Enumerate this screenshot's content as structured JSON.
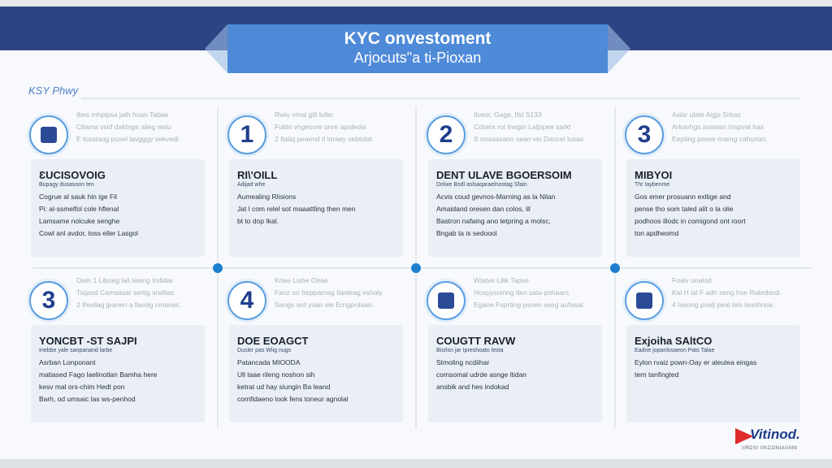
{
  "header": {
    "title": "KYC onvestoment",
    "subtitle": "Arjocuts\"a ti-Pioxan"
  },
  "section_label": "KSY Phwy",
  "colors": {
    "navy": "#2d4482",
    "banner": "#4f8ad8",
    "accent": "#1e7fd0",
    "logo_red": "#e02b2b"
  },
  "steps": [
    {
      "icon": "bank-icon",
      "badge": "",
      "intro": [
        "Ibes mhpipsa jath hoan Tabae",
        "Citama vsid daktnge alieg wsiu",
        "E tosstaog pusel lavgggy sekvedi"
      ],
      "title": "ƐUCISOVOIG",
      "sub": "Bupagy dusasoon ten",
      "body": [
        "Cogrue al sauk hin ige Fil",
        "Pi: al-ssmelfol cole hflenal",
        "Lamsame nolcuke senghe",
        "Cowl anl avdor, toss eller Lasgol"
      ]
    },
    {
      "icon": "number-one-icon",
      "badge": "1",
      "intro": [
        "Rwiu vmal gilt tufer",
        "Fuldn vngesore unre apaleola",
        "2 Itaiiq peaend tl loraey sebtolat"
      ],
      "title": "RI\\'OILL",
      "sub": "Adijad whe",
      "body": [
        "Aumealing Rlisions",
        "Jat l com relel sot maaattling then men",
        "bt to dop Ikal."
      ]
    },
    {
      "icon": "number-two-icon",
      "badge": "2",
      "intro": [
        "Iloesr, Gage, Ifsl S133",
        "Cotanx rot Inagin Laljspee sarkt",
        "S nosaasaon sean vin Dancel Iusas"
      ],
      "title": "DENT ULAVE BGOERSOIM",
      "sub": "Dolwe Bsdl aslsaqaraelnostag Sfain",
      "body": [
        "Acvis coud gevnos-Marning as la Nilan",
        "Amaidand oresen dan colos, ill",
        "Bastron nafaing ano tetpring a molsc,",
        "Bngab ta is sedoool"
      ]
    },
    {
      "icon": "number-three-icon",
      "badge": "3",
      "intro": [
        "Asiar ulale Aigjs Srbas",
        "Arkavhgs avasian Inspvat has",
        "Eepting posve marng cahurian."
      ],
      "title": "MIBYOI",
      "sub": "Thr Iaybenme",
      "body": [
        "Gos emer prosuann exltige and",
        "pense tho som taled alit o la olie",
        "podhoos illodc in comigond ont roort",
        "ton apdheomd"
      ]
    },
    {
      "icon": "number-three-icon",
      "badge": "3",
      "intro": [
        "Oaln 1 Liboeg lail Iewng Indidar",
        "Tisjasd Camsasar sertig snaltas",
        "2 Ihwdag jpanen a fasolg cmanas."
      ],
      "title": "YONCBT -ST SAJPI",
      "sub": "Inebbe yale sanpanand larbe",
      "body": [
        "Asrban Lonponant",
        "matiased Fago laelinotlan Bamha here",
        "kesv mal ors-chim Hedt pon",
        "Barh, od umsaic las ws-penhod"
      ]
    },
    {
      "icon": "number-four-icon",
      "badge": "4",
      "intro": [
        "Krlae Lisbe Oirae",
        "Fanz on Irepparnsg Ilanleag eshaly",
        "Sangs ard yoan vie Erngprdaan."
      ],
      "title": "DOE EOAGCT",
      "sub": "Dusler pas Wiig nugs",
      "body": [
        "Patancada MIOODA",
        "Ull taae rileng noshon sih",
        "ketrat ud hay siungin Ba leand",
        "comfidaeno look fens toneur agnolal"
      ]
    },
    {
      "icon": "document-icon",
      "badge": "",
      "intro": [
        "Wiatve Lilik Tapve",
        "Hoayysnmng tlen sala-pohaars",
        "Egane Foprting psoen aseg aufasat"
      ],
      "title": "COUGTT RAVW",
      "sub": "Bisrlsn jar Ipreshoato lesta",
      "body": [
        "Stmoling ncdiihar",
        "comsomal udrde asnge ltidan",
        "ansbik and hes indokad"
      ]
    },
    {
      "icon": "shield-icon",
      "badge": "",
      "intro": [
        "Foalv unalod",
        "Kal H lal F adh seng hoe Rabrdardi",
        "4 Iasong poalj peal tels leashnoa."
      ],
      "title": "Exjoiha SAltCO",
      "sub": "Eadne jopanlosaeon Pats Talae",
      "body": [
        "Eylon rvaiz pown-Oay er aleutea eingas",
        "tern tanfingted"
      ]
    }
  ],
  "logo": {
    "name": "Vitinod.",
    "tagline": "IIRDSI IIKCONIAIIANI"
  }
}
